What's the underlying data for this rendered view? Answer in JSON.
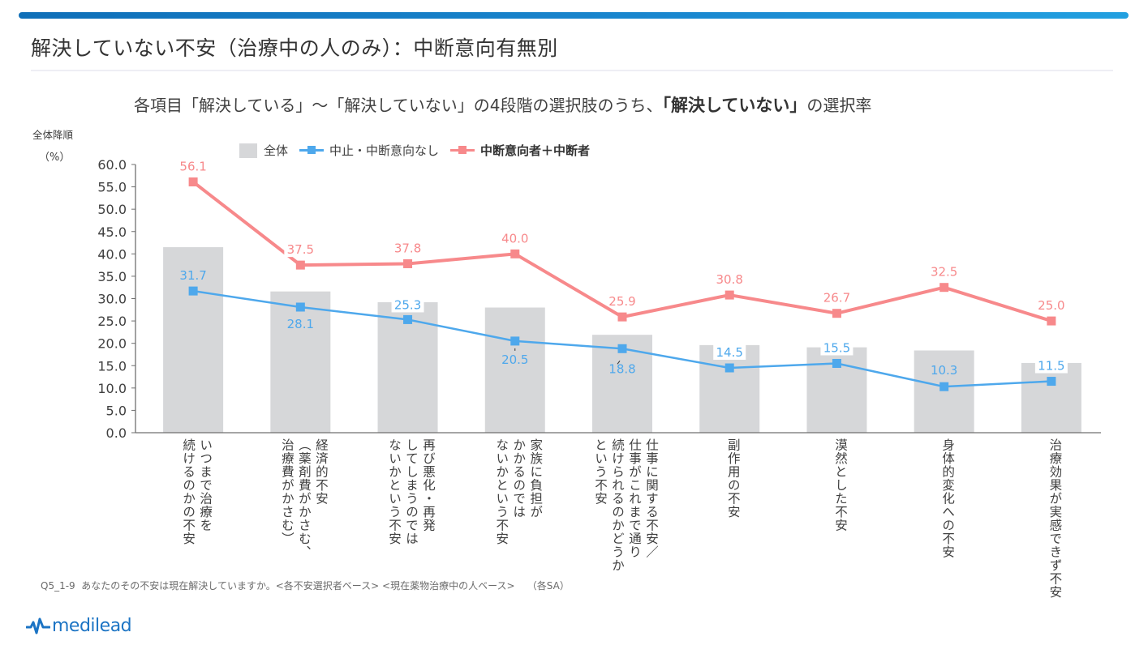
{
  "page": {
    "title": "解決していない不安（治療中の人のみ）：中断意向有無別",
    "subtitle_prefix": "各項目「解決している」～「解決していない」の4段階の選択肢のうち、",
    "subtitle_bold": "「解決していない」",
    "subtitle_suffix": "の選択率",
    "sort_note": "全体降順",
    "footnote": "Q5_1-9  あなたのその不安は現在解決していますか。<各不安選択者ベース> <現在薬物治療中の人ベース>    （各SA）",
    "logo_text": "medilead",
    "colors": {
      "accent": "#1a88d0",
      "bar": "#d6d7d9",
      "series_blue": "#4ea8ec",
      "series_pink": "#f7898b"
    }
  },
  "chart_data": {
    "type": "bar",
    "title": "各項目「解決している」～「解決していない」の4段階の選択肢のうち、「解決していない」の選択率",
    "xlabel": "",
    "ylabel": "（%）",
    "ylim": [
      0,
      60
    ],
    "yticks": [
      "0.0",
      "5.0",
      "10.0",
      "15.0",
      "20.0",
      "25.0",
      "30.0",
      "35.0",
      "40.0",
      "45.0",
      "50.0",
      "55.0",
      "60.0"
    ],
    "grid": false,
    "legend_position": "top",
    "categories": [
      "いつまで治療を\n続けるのかの不安",
      "経済的不安\n（薬剤費がかさむ、\n治療費がかさむ）",
      "再び悪化・再発\nしてしまうのでは\nないかという不安",
      "家族に負担が\nかかるのでは\nないかという不安",
      "仕事に関する不安／\n仕事がこれまで通り\n続けられるのかどうか\nという不安",
      "副作用の不安",
      "漠然とした不安",
      "身体的変化への不安",
      "治療効果が実感できず不安"
    ],
    "series": [
      {
        "name": "全体",
        "type": "bar",
        "values": [
          41.5,
          31.6,
          29.2,
          28.0,
          21.9,
          19.6,
          19.1,
          18.4,
          15.6
        ],
        "labeled": false
      },
      {
        "name": "中止・中断意向なし",
        "type": "line",
        "values": [
          31.7,
          28.1,
          25.3,
          20.5,
          18.8,
          14.5,
          15.5,
          10.3,
          11.5
        ],
        "labels": [
          "31.7",
          "28.1",
          "25.3",
          "20.5",
          "18.8",
          "14.5",
          "15.5",
          "10.3",
          "11.5"
        ]
      },
      {
        "name": "中断意向者＋中断者",
        "type": "line",
        "values": [
          56.1,
          37.5,
          37.8,
          40.0,
          25.9,
          30.8,
          26.7,
          32.5,
          25.0
        ],
        "labels": [
          "56.1",
          "37.5",
          "37.8",
          "40.0",
          "25.9",
          "30.8",
          "26.7",
          "32.5",
          "25.0"
        ]
      }
    ]
  }
}
